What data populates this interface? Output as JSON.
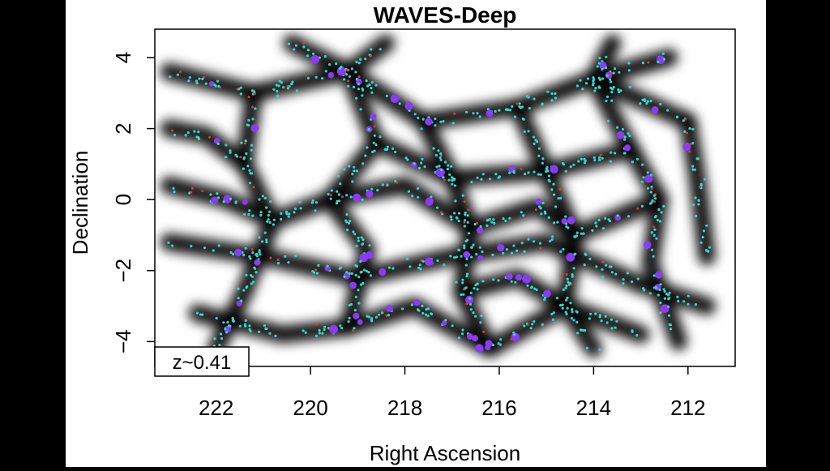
{
  "chart_data": {
    "type": "scatter",
    "title": "WAVES-Deep",
    "xlabel": "Right Ascension",
    "ylabel": "Declination",
    "x_reversed": true,
    "xlim": [
      223.3,
      211.0
    ],
    "ylim": [
      -4.7,
      4.8
    ],
    "x_ticks": [
      222,
      220,
      218,
      216,
      214,
      212
    ],
    "y_ticks": [
      4,
      2,
      0,
      -2,
      -4
    ],
    "y_tick_labels": [
      "4",
      "2",
      "0",
      "−2",
      "−4"
    ],
    "annotation": "z~0.41",
    "grid": false,
    "legend": "none",
    "colors": {
      "density_background": "#ffffff",
      "density_dark": "#000000",
      "galaxies_primary": "#2fd8cc",
      "galaxies_group": "#8a3cf0",
      "galaxies_red": "#e03a3a"
    },
    "filaments": [
      {
        "points": [
          [
            223.0,
            -1.2
          ],
          [
            221.0,
            -1.6
          ],
          [
            219.0,
            -2.2
          ],
          [
            217.0,
            -1.6
          ],
          [
            215.0,
            -1.2
          ],
          [
            213.0,
            -2.4
          ],
          [
            211.6,
            -3.0
          ]
        ]
      },
      {
        "points": [
          [
            223.0,
            3.6
          ],
          [
            221.2,
            3.0
          ],
          [
            219.2,
            3.6
          ],
          [
            217.6,
            2.2
          ],
          [
            215.6,
            2.6
          ],
          [
            214.0,
            3.4
          ],
          [
            212.0,
            2.2
          ]
        ]
      },
      {
        "points": [
          [
            221.2,
            3.0
          ],
          [
            221.4,
            1.0
          ],
          [
            220.8,
            -0.6
          ],
          [
            221.4,
            -2.6
          ],
          [
            222.0,
            -4.2
          ]
        ]
      },
      {
        "points": [
          [
            219.2,
            3.6
          ],
          [
            218.6,
            1.6
          ],
          [
            219.6,
            0.0
          ],
          [
            218.8,
            -1.4
          ],
          [
            219.2,
            -3.6
          ]
        ]
      },
      {
        "points": [
          [
            217.6,
            2.2
          ],
          [
            217.0,
            0.6
          ],
          [
            216.6,
            -0.8
          ],
          [
            216.8,
            -2.6
          ],
          [
            216.2,
            -4.2
          ]
        ]
      },
      {
        "points": [
          [
            215.6,
            2.6
          ],
          [
            215.0,
            0.8
          ],
          [
            214.4,
            -1.0
          ],
          [
            214.6,
            -3.0
          ],
          [
            214.0,
            -4.2
          ]
        ]
      },
      {
        "points": [
          [
            214.0,
            3.4
          ],
          [
            213.2,
            1.4
          ],
          [
            212.6,
            0.0
          ],
          [
            212.8,
            -1.8
          ],
          [
            212.2,
            -4.0
          ]
        ]
      },
      {
        "points": [
          [
            212.0,
            2.2
          ],
          [
            211.8,
            0.6
          ],
          [
            211.6,
            -1.6
          ]
        ]
      },
      {
        "points": [
          [
            223.0,
            0.4
          ],
          [
            221.8,
            0.0
          ],
          [
            220.8,
            -0.6
          ],
          [
            219.6,
            0.0
          ],
          [
            218.0,
            0.4
          ],
          [
            216.6,
            -0.8
          ],
          [
            215.2,
            -0.2
          ],
          [
            214.4,
            -1.0
          ],
          [
            212.6,
            0.0
          ]
        ]
      },
      {
        "points": [
          [
            222.4,
            -3.2
          ],
          [
            220.6,
            -3.8
          ],
          [
            219.2,
            -3.6
          ],
          [
            217.8,
            -3.0
          ],
          [
            216.2,
            -4.2
          ],
          [
            214.6,
            -3.0
          ],
          [
            213.0,
            -3.8
          ]
        ]
      },
      {
        "points": [
          [
            223.0,
            2.0
          ],
          [
            222.2,
            1.8
          ],
          [
            221.4,
            1.0
          ]
        ]
      },
      {
        "points": [
          [
            218.6,
            1.6
          ],
          [
            217.0,
            0.6
          ],
          [
            215.0,
            0.8
          ],
          [
            213.2,
            1.4
          ]
        ]
      },
      {
        "points": [
          [
            216.8,
            -2.6
          ],
          [
            215.6,
            -2.2
          ],
          [
            214.6,
            -3.0
          ]
        ]
      },
      {
        "points": [
          [
            220.4,
            4.4
          ],
          [
            219.2,
            3.6
          ],
          [
            218.4,
            4.4
          ]
        ]
      },
      {
        "points": [
          [
            213.6,
            4.4
          ],
          [
            214.0,
            3.4
          ],
          [
            212.4,
            4.0
          ]
        ]
      }
    ]
  }
}
